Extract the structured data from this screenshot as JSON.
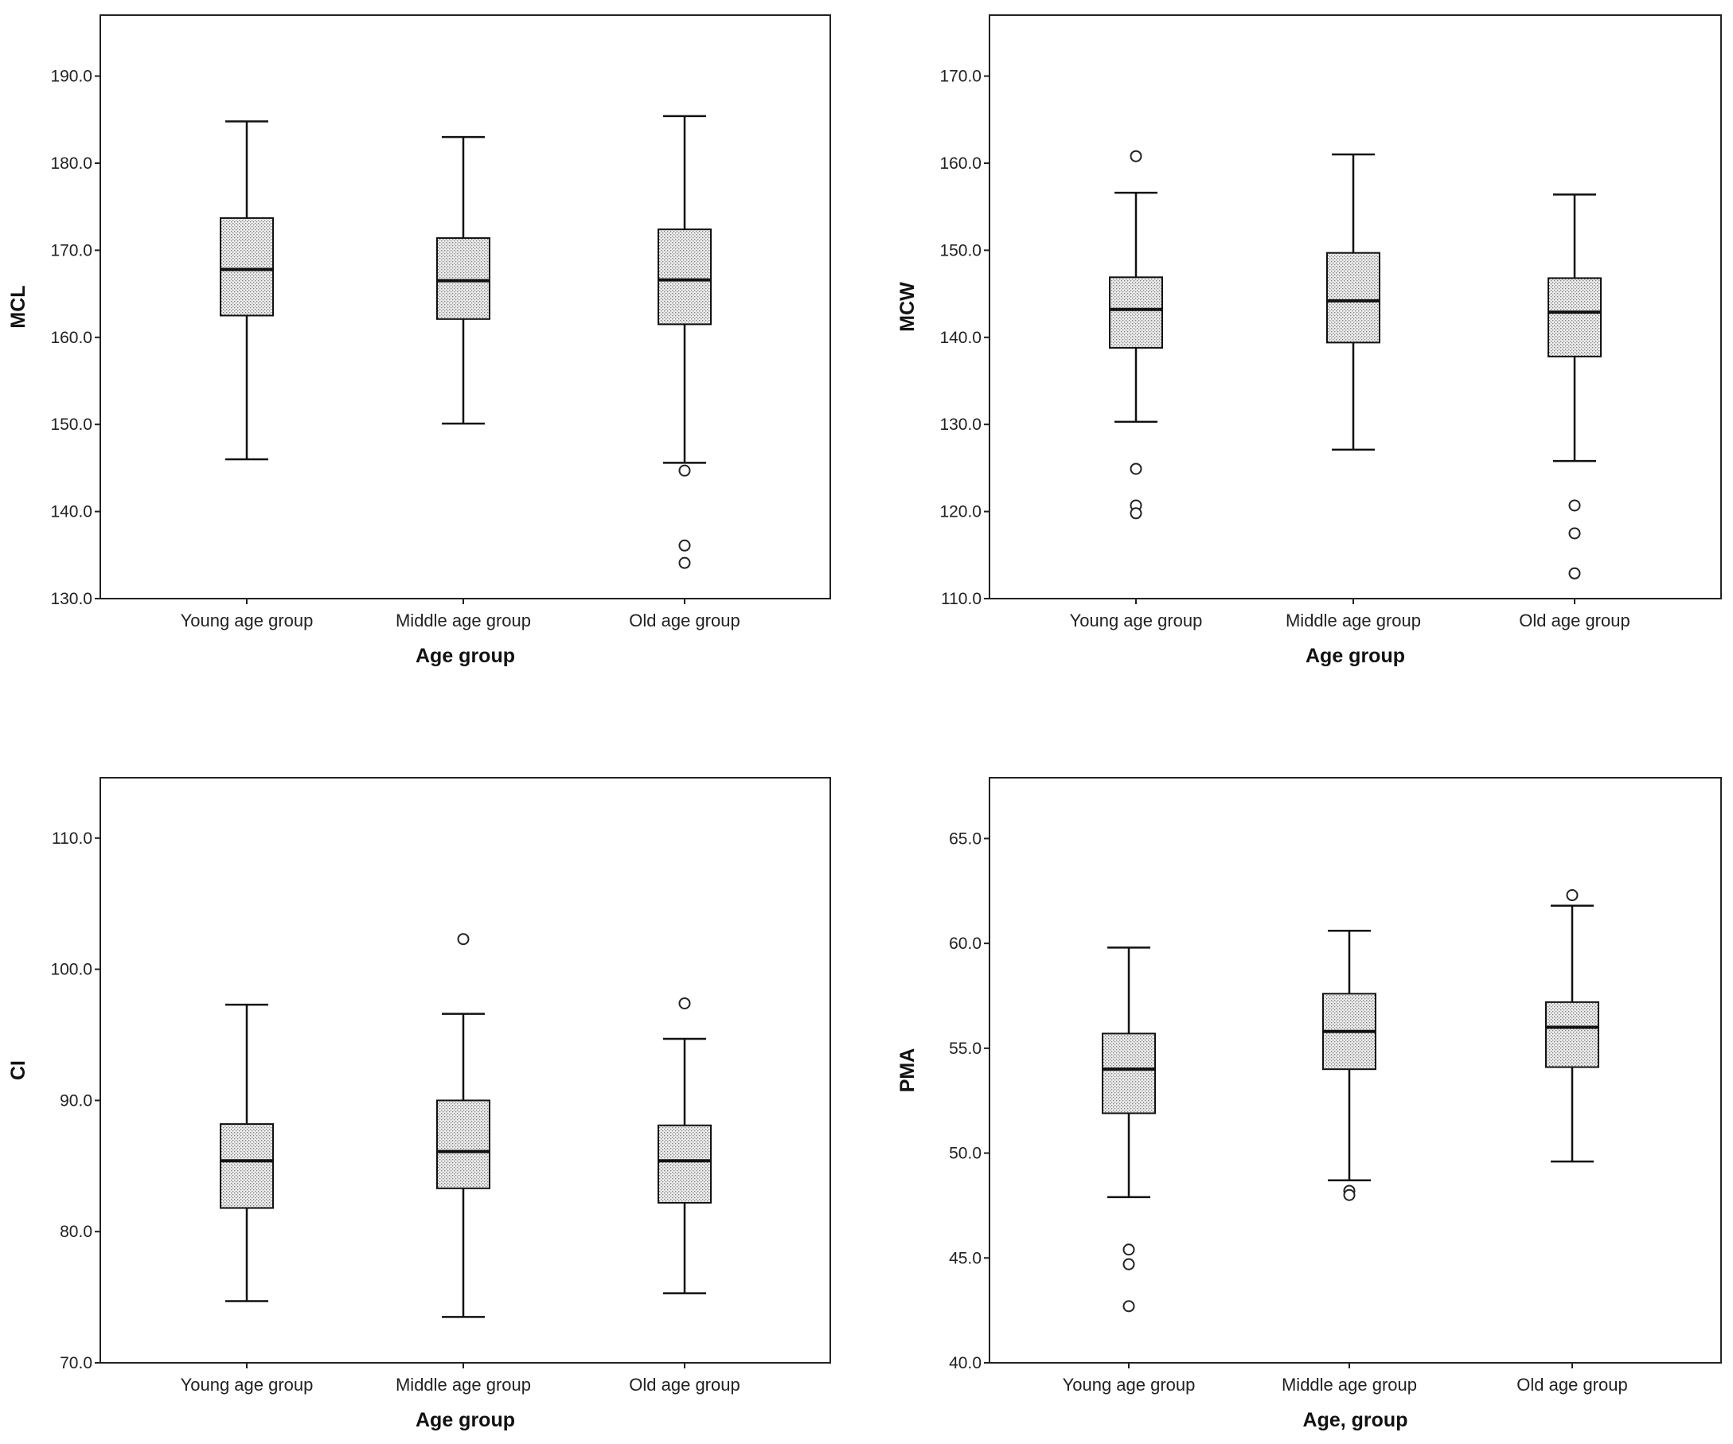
{
  "chart_data": [
    {
      "type": "boxplot",
      "xlabel": "Age  group",
      "ylabel": "MCL",
      "categories": [
        "Young age group",
        "Middle age group",
        "Old age group"
      ],
      "ylim": [
        130,
        197
      ],
      "yticks": [
        130,
        140,
        150,
        160,
        170,
        180,
        190
      ],
      "ytick_labels": [
        "130.0",
        "140.0",
        "150.0",
        "160.0",
        "170.0",
        "180.0",
        "190.0"
      ],
      "boxes": [
        {
          "whisker_low": 146.0,
          "q1": 162.5,
          "median": 167.8,
          "q3": 173.7,
          "whisker_high": 184.8,
          "outliers": []
        },
        {
          "whisker_low": 150.1,
          "q1": 162.1,
          "median": 166.5,
          "q3": 171.4,
          "whisker_high": 183.0,
          "outliers": []
        },
        {
          "whisker_low": 145.6,
          "q1": 161.5,
          "median": 166.6,
          "q3": 172.4,
          "whisker_high": 185.4,
          "outliers": [
            144.7,
            136.1,
            134.1
          ]
        }
      ]
    },
    {
      "type": "boxplot",
      "xlabel": "Age  group",
      "ylabel": "MCW",
      "categories": [
        "Young age group",
        "Middle age group",
        "Old age group"
      ],
      "ylim": [
        110,
        177
      ],
      "yticks": [
        110,
        120,
        130,
        140,
        150,
        160,
        170
      ],
      "ytick_labels": [
        "110.0",
        "120.0",
        "130.0",
        "140.0",
        "150.0",
        "160.0",
        "170.0"
      ],
      "boxes": [
        {
          "whisker_low": 130.3,
          "q1": 138.8,
          "median": 143.2,
          "q3": 146.9,
          "whisker_high": 156.6,
          "outliers": [
            160.8,
            124.9,
            120.7,
            119.8
          ]
        },
        {
          "whisker_low": 127.1,
          "q1": 139.4,
          "median": 144.2,
          "q3": 149.7,
          "whisker_high": 161.0,
          "outliers": []
        },
        {
          "whisker_low": 125.8,
          "q1": 137.8,
          "median": 142.9,
          "q3": 146.8,
          "whisker_high": 156.4,
          "outliers": [
            120.7,
            117.5,
            112.9
          ]
        }
      ]
    },
    {
      "type": "boxplot",
      "xlabel": "Age  group",
      "ylabel": "CI",
      "categories": [
        "Young age group",
        "Middle age group",
        "Old age group"
      ],
      "ylim": [
        70,
        114.6
      ],
      "yticks": [
        70,
        80,
        90,
        100,
        110
      ],
      "ytick_labels": [
        "70.0",
        "80.0",
        "90.0",
        "100.0",
        "110.0"
      ],
      "boxes": [
        {
          "whisker_low": 74.7,
          "q1": 81.8,
          "median": 85.4,
          "q3": 88.2,
          "whisker_high": 97.3,
          "outliers": []
        },
        {
          "whisker_low": 73.5,
          "q1": 83.3,
          "median": 86.1,
          "q3": 90.0,
          "whisker_high": 96.6,
          "outliers": [
            102.3
          ]
        },
        {
          "whisker_low": 75.3,
          "q1": 82.2,
          "median": 85.4,
          "q3": 88.1,
          "whisker_high": 94.7,
          "outliers": [
            97.4
          ]
        }
      ]
    },
    {
      "type": "boxplot",
      "xlabel": "Age, group",
      "ylabel": "PMA",
      "categories": [
        "Young age group",
        "Middle age group",
        "Old age group"
      ],
      "ylim": [
        40,
        67.9
      ],
      "yticks": [
        40,
        45,
        50,
        55,
        60,
        65
      ],
      "ytick_labels": [
        "40.0",
        "45.0",
        "50.0",
        "55.0",
        "60.0",
        "65.0"
      ],
      "boxes": [
        {
          "whisker_low": 47.9,
          "q1": 51.9,
          "median": 54.0,
          "q3": 55.7,
          "whisker_high": 59.8,
          "outliers": [
            45.4,
            44.7,
            42.7
          ]
        },
        {
          "whisker_low": 48.7,
          "q1": 54.0,
          "median": 55.8,
          "q3": 57.6,
          "whisker_high": 60.6,
          "outliers": [
            48.2,
            48.0
          ]
        },
        {
          "whisker_low": 49.6,
          "q1": 54.1,
          "median": 56.0,
          "q3": 57.2,
          "whisker_high": 61.8,
          "outliers": [
            62.3
          ]
        }
      ]
    }
  ]
}
